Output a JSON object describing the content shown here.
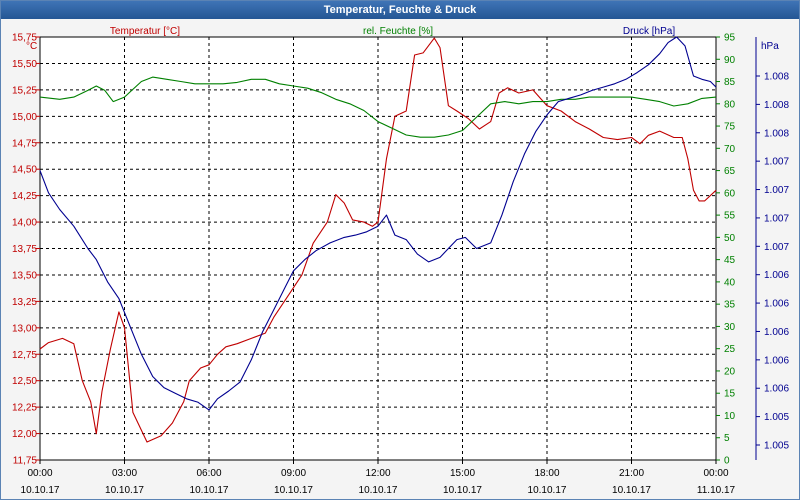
{
  "window": {
    "title": "Temperatur, Feuchte & Druck"
  },
  "colors": {
    "temperature": "#c00000",
    "humidity": "#008000",
    "pressure": "#000090",
    "grid": "#000000",
    "axis_text": "#000000"
  },
  "chart_data": {
    "type": "line",
    "title": "Temperatur, Feuchte & Druck",
    "x_unit": "hours since 10.10.17 00:00",
    "xlim": [
      0,
      24
    ],
    "x_ticks": [
      {
        "time": "00:00",
        "date": "10.10.17"
      },
      {
        "time": "03:00",
        "date": "10.10.17"
      },
      {
        "time": "06:00",
        "date": "10.10.17"
      },
      {
        "time": "09:00",
        "date": "10.10.17"
      },
      {
        "time": "12:00",
        "date": "10.10.17"
      },
      {
        "time": "15:00",
        "date": "10.10.17"
      },
      {
        "time": "18:00",
        "date": "10.10.17"
      },
      {
        "time": "21:00",
        "date": "10.10.17"
      },
      {
        "time": "00:00",
        "date": "11.10.17"
      }
    ],
    "axes": {
      "left": {
        "unit": "°C",
        "label": "Temperatur [°C]",
        "ylim": [
          11.75,
          15.75
        ],
        "ticks": [
          "15,75",
          "15,50",
          "15,25",
          "15,00",
          "14,75",
          "14,50",
          "14,25",
          "14,00",
          "13,75",
          "13,50",
          "13,25",
          "13,00",
          "12,75",
          "12,50",
          "12,25",
          "12,00",
          "11,75"
        ]
      },
      "middle": {
        "unit": "%",
        "label": "rel. Feuchte [%]",
        "ylim": [
          0,
          95
        ],
        "ticks": [
          "95",
          "90",
          "85",
          "80",
          "75",
          "70",
          "65",
          "60",
          "55",
          "50",
          "45",
          "40",
          "35",
          "30",
          "25",
          "20",
          "15",
          "10",
          "5",
          "0"
        ]
      },
      "right": {
        "unit": "hPa",
        "label": "Druck [hPa]",
        "ylim": [
          1004.6,
          1008.4
        ],
        "ticks": [
          "1.008",
          "1.008",
          "1.008",
          "1.007",
          "1.007",
          "1.007",
          "1.007",
          "1.006",
          "1.006",
          "1.006",
          "1.006",
          "1.006",
          "1.005",
          "1.005"
        ]
      }
    },
    "series": [
      {
        "name": "Temperatur [°C]",
        "axis": "left",
        "x": [
          0,
          0.3,
          0.8,
          1.2,
          1.5,
          1.8,
          2,
          2.2,
          2.5,
          2.8,
          3,
          3.3,
          3.8,
          4.3,
          4.7,
          5.1,
          5.3,
          5.7,
          6,
          6.3,
          6.6,
          7,
          7.5,
          8,
          8.3,
          8.8,
          9.3,
          9.7,
          10.2,
          10.5,
          10.8,
          11.1,
          11.5,
          11.8,
          12,
          12.3,
          12.6,
          13,
          13.3,
          13.6,
          14,
          14.2,
          14.5,
          14.8,
          15.2,
          15.6,
          16,
          16.3,
          16.6,
          17,
          17.5,
          18,
          18.5,
          19,
          19.5,
          20,
          20.5,
          21,
          21.3,
          21.6,
          22,
          22.5,
          22.8,
          23,
          23.2,
          23.4,
          23.6,
          24
        ],
        "values": [
          12.8,
          12.86,
          12.9,
          12.85,
          12.5,
          12.3,
          12.0,
          12.4,
          12.8,
          13.15,
          13.0,
          12.2,
          11.92,
          11.98,
          12.1,
          12.3,
          12.5,
          12.62,
          12.65,
          12.75,
          12.82,
          12.85,
          12.9,
          12.95,
          13.1,
          13.3,
          13.5,
          13.8,
          14.0,
          14.26,
          14.18,
          14.02,
          14.0,
          13.96,
          14.0,
          14.6,
          15.0,
          15.05,
          15.58,
          15.6,
          15.74,
          15.65,
          15.1,
          15.05,
          14.98,
          14.88,
          14.95,
          15.22,
          15.27,
          15.22,
          15.25,
          15.1,
          15.05,
          14.95,
          14.88,
          14.8,
          14.78,
          14.8,
          14.74,
          14.82,
          14.86,
          14.8,
          14.8,
          14.6,
          14.3,
          14.2,
          14.2,
          14.3
        ]
      },
      {
        "name": "rel. Feuchte [%]",
        "axis": "middle",
        "x": [
          0,
          0.7,
          1.2,
          1.7,
          2,
          2.3,
          2.6,
          3,
          3.6,
          4,
          4.5,
          5,
          5.5,
          6,
          6.5,
          7,
          7.5,
          8,
          8.5,
          9,
          9.5,
          10,
          10.5,
          11,
          11.5,
          12,
          12.5,
          13,
          13.5,
          14,
          14.5,
          15,
          15.5,
          16,
          16.5,
          17,
          17.5,
          18,
          18.5,
          19,
          19.5,
          20,
          20.5,
          21,
          21.5,
          22,
          22.5,
          23,
          23.5,
          24
        ],
        "values": [
          81.5,
          81,
          81.5,
          83,
          84,
          83,
          80.5,
          81.5,
          85,
          86,
          85.5,
          85,
          84.5,
          84.5,
          84.5,
          84.8,
          85.5,
          85.5,
          84.5,
          84,
          83.5,
          82.5,
          81,
          80,
          78.5,
          76,
          74.5,
          73,
          72.5,
          72.5,
          73,
          74,
          77,
          80,
          80.5,
          80,
          80.5,
          80.5,
          81,
          81,
          81.5,
          81.5,
          81.5,
          81.5,
          81,
          80.5,
          79.5,
          80,
          81.2,
          81.5
        ]
      },
      {
        "name": "Druck [hPa]",
        "axis": "right",
        "x": [
          0,
          0.3,
          0.7,
          1.2,
          1.7,
          2,
          2.4,
          2.8,
          3.2,
          3.6,
          4,
          4.4,
          4.8,
          5.2,
          5.6,
          6,
          6.3,
          6.7,
          7.1,
          7.5,
          7.9,
          8.3,
          8.7,
          9,
          9.4,
          9.8,
          10.3,
          10.8,
          11.2,
          11.6,
          12,
          12.3,
          12.6,
          13,
          13.4,
          13.8,
          14.2,
          14.5,
          14.8,
          15.1,
          15.5,
          16,
          16.4,
          16.8,
          17.2,
          17.6,
          18,
          18.4,
          18.8,
          19.2,
          19.6,
          20,
          20.4,
          20.8,
          21.2,
          21.6,
          22,
          22.3,
          22.6,
          22.9,
          23.2,
          23.5,
          23.8,
          24
        ],
        "values": [
          1007.2,
          1007,
          1006.85,
          1006.7,
          1006.5,
          1006.4,
          1006.2,
          1006.05,
          1005.8,
          1005.55,
          1005.35,
          1005.25,
          1005.2,
          1005.15,
          1005.12,
          1005.05,
          1005.15,
          1005.22,
          1005.3,
          1005.5,
          1005.75,
          1005.95,
          1006.15,
          1006.3,
          1006.4,
          1006.48,
          1006.55,
          1006.6,
          1006.62,
          1006.65,
          1006.7,
          1006.8,
          1006.62,
          1006.58,
          1006.45,
          1006.38,
          1006.42,
          1006.5,
          1006.58,
          1006.6,
          1006.5,
          1006.55,
          1006.8,
          1007.1,
          1007.35,
          1007.55,
          1007.7,
          1007.82,
          1007.85,
          1007.88,
          1007.92,
          1007.95,
          1007.98,
          1008.02,
          1008.08,
          1008.15,
          1008.25,
          1008.35,
          1008.4,
          1008.32,
          1008.05,
          1008.02,
          1008.0,
          1007.95
        ]
      }
    ]
  }
}
